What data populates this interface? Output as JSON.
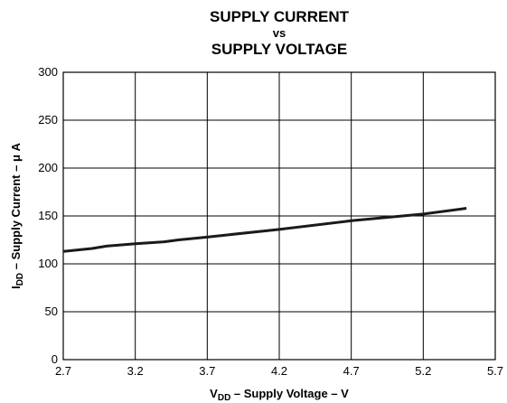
{
  "chart_data": {
    "type": "line",
    "title": [
      "SUPPLY CURRENT",
      "vs",
      "SUPPLY VOLTAGE"
    ],
    "xlabel": {
      "main": "V",
      "sub": "DD",
      "rest": " – Supply Voltage – V"
    },
    "ylabel": {
      "main": "I",
      "sub": "DD",
      "rest": " – Supply Current – μ A"
    },
    "x": [
      2.7,
      2.9,
      3.0,
      3.2,
      3.4,
      3.5,
      3.7,
      4.2,
      4.7,
      5.2,
      5.5
    ],
    "series": [
      {
        "color": "#1a1a1a",
        "values": [
          113,
          116,
          118.5,
          121,
          123,
          125,
          128,
          136,
          145,
          152,
          158
        ]
      }
    ],
    "xlim": [
      2.7,
      5.7
    ],
    "xticks": [
      2.7,
      3.2,
      3.7,
      4.2,
      4.7,
      5.2,
      5.7
    ],
    "ylim": [
      0,
      300
    ],
    "yticks": [
      0,
      50,
      100,
      150,
      200,
      250,
      300
    ],
    "grid": true
  }
}
